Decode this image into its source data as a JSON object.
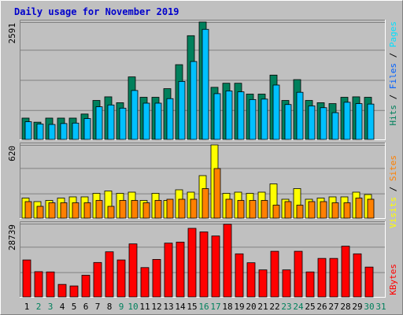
{
  "title": "Daily usage for November 2019",
  "colors": {
    "frame_bg": "#c0c0c0",
    "plot_bg": "#c0c0c0",
    "title": "#0000cc",
    "hits": "#00805c",
    "files": "#00c0ff",
    "pages": "#00e0ff",
    "visits": "#ffff00",
    "sites": "#ff8000",
    "kbytes": "#ff0000",
    "weekend_label": "#00805c",
    "weekday_label": "#000000"
  },
  "chart_data": [
    {
      "type": "bar",
      "panel": "hits-files-pages",
      "ymax_label": "2591",
      "ylim": [
        0,
        2591
      ],
      "series": [
        {
          "name": "Hits",
          "values": [
            470,
            380,
            470,
            470,
            470,
            560,
            860,
            940,
            810,
            1380,
            930,
            930,
            1120,
            1650,
            2290,
            2591,
            1150,
            1240,
            1240,
            1000,
            1000,
            1420,
            860,
            1320,
            860,
            810,
            790,
            930,
            940,
            930
          ]
        },
        {
          "name": "Files",
          "values": [
            390,
            340,
            330,
            350,
            360,
            460,
            720,
            760,
            690,
            1080,
            800,
            800,
            900,
            1280,
            1720,
            2430,
            1010,
            1070,
            1050,
            880,
            890,
            1200,
            770,
            1040,
            740,
            700,
            590,
            820,
            790,
            780
          ]
        },
        {
          "name": "Pages",
          "values": [
            390,
            340,
            330,
            350,
            360,
            460,
            720,
            760,
            690,
            1080,
            800,
            800,
            900,
            1280,
            1720,
            2430,
            1010,
            1070,
            1050,
            880,
            890,
            1200,
            770,
            1040,
            740,
            700,
            590,
            820,
            790,
            780
          ]
        }
      ],
      "legend": [
        "Hits",
        "Files",
        "Pages"
      ]
    },
    {
      "type": "bar",
      "panel": "visits-sites",
      "ymax_label": "620",
      "ylim": [
        0,
        620
      ],
      "series": [
        {
          "name": "Visits",
          "values": [
            170,
            140,
            150,
            170,
            180,
            180,
            210,
            230,
            210,
            220,
            150,
            210,
            150,
            240,
            220,
            360,
            620,
            210,
            220,
            210,
            220,
            290,
            160,
            250,
            160,
            170,
            180,
            180,
            220,
            200
          ]
        },
        {
          "name": "Sites",
          "values": [
            140,
            100,
            130,
            130,
            130,
            130,
            150,
            100,
            150,
            150,
            130,
            150,
            160,
            160,
            160,
            250,
            420,
            160,
            150,
            150,
            150,
            110,
            140,
            110,
            140,
            140,
            130,
            130,
            170,
            160
          ]
        }
      ],
      "legend": [
        "Sites",
        "Visits"
      ]
    },
    {
      "type": "bar",
      "panel": "kbytes",
      "ymax_label": "28739",
      "ylim": [
        0,
        28739
      ],
      "series": [
        {
          "name": "KBytes",
          "values": [
            14500,
            9900,
            9800,
            4900,
            4300,
            8500,
            13500,
            17700,
            14500,
            20800,
            11500,
            14700,
            21100,
            21500,
            26900,
            25500,
            23900,
            28500,
            16900,
            13400,
            10600,
            17900,
            10600,
            17900,
            9800,
            15100,
            15100,
            19900,
            16900,
            11700
          ]
        }
      ],
      "legend": [
        "KBytes"
      ]
    }
  ],
  "x_labels": [
    "1",
    "2",
    "3",
    "4",
    "5",
    "6",
    "7",
    "8",
    "9",
    "10",
    "11",
    "12",
    "13",
    "14",
    "15",
    "16",
    "17",
    "18",
    "19",
    "20",
    "21",
    "22",
    "23",
    "24",
    "25",
    "26",
    "27",
    "28",
    "29",
    "30",
    "31"
  ],
  "weekend_days": [
    2,
    3,
    9,
    10,
    16,
    17,
    23,
    24,
    30,
    31
  ]
}
